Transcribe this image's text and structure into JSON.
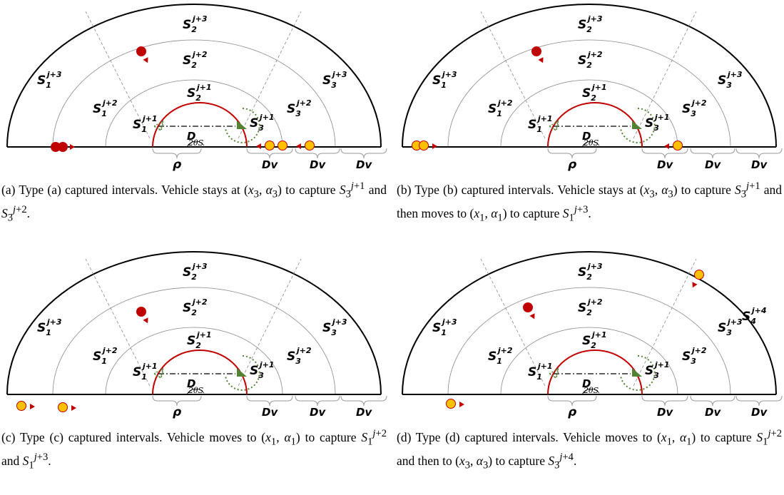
{
  "figure": {
    "panels": [
      {
        "id": "a",
        "labels": {
          "outer": [
            "S_1^{j+3}",
            "S_2^{j+3}",
            "S_3^{j+3}"
          ],
          "middle": [
            "S_1^{j+2}",
            "S_2^{j+2}",
            "S_3^{j+2}"
          ],
          "inner": [
            "S_1^{j+1}",
            "S_2^{j+1}",
            "S_3^{j+1}"
          ],
          "extra": "",
          "rho": "ρ",
          "D": "D",
          "angle": "2θ_S",
          "dv": [
            "Dv",
            "Dv",
            "Dv"
          ]
        },
        "caption_html": "(a) Type (a) captured intervals. Vehicle stays at (<i>x</i><sub>3</sub>, <i>α</i><sub>3</sub>) to capture <i>S</i><sub>3</sub><sup><i>j</i>+1</sup> and <i>S</i><sub>3</sub><sup><i>j</i>+2</sup>."
      },
      {
        "id": "b",
        "labels": {
          "outer": [
            "S_1^{j+3}",
            "S_2^{j+3}",
            "S_3^{j+3}"
          ],
          "middle": [
            "S_1^{j+2}",
            "S_2^{j+2}",
            "S_3^{j+2}"
          ],
          "inner": [
            "S_1^{j+1}",
            "S_2^{j+1}",
            "S_3^{j+1}"
          ],
          "extra": "",
          "rho": "ρ",
          "D": "D",
          "angle": "2θ_S",
          "dv": [
            "Dv",
            "Dv",
            "Dv"
          ]
        },
        "caption_html": "(b) Type (b) captured intervals. Vehicle stays at (<i>x</i><sub>3</sub>, <i>α</i><sub>3</sub>) to capture <i>S</i><sub>3</sub><sup><i>j</i>+1</sup> and then moves to (<i>x</i><sub>1</sub>, <i>α</i><sub>1</sub>) to capture <i>S</i><sub>1</sub><sup><i>j</i>+3</sup>."
      },
      {
        "id": "c",
        "labels": {
          "outer": [
            "S_1^{j+3}",
            "S_2^{j+3}",
            "S_3^{j+3}"
          ],
          "middle": [
            "S_1^{j+2}",
            "S_2^{j+2}",
            "S_3^{j+2}"
          ],
          "inner": [
            "S_1^{j+1}",
            "S_2^{j+1}",
            "S_3^{j+1}"
          ],
          "extra": "",
          "rho": "ρ",
          "D": "D",
          "angle": "2θ_S",
          "dv": [
            "Dv",
            "Dv",
            "Dv"
          ]
        },
        "caption_html": "(c) Type (c) captured intervals. Vehicle moves to (<i>x</i><sub>1</sub>, <i>α</i><sub>1</sub>) to capture <i>S</i><sub>1</sub><sup><i>j</i>+2</sup> and <i>S</i><sub>1</sub><sup><i>j</i>+3</sup>."
      },
      {
        "id": "d",
        "labels": {
          "outer": [
            "S_1^{j+3}",
            "S_2^{j+3}",
            "S_3^{j+3}"
          ],
          "middle": [
            "S_1^{j+2}",
            "S_2^{j+2}",
            "S_3^{j+2}"
          ],
          "inner": [
            "S_1^{j+1}",
            "S_2^{j+1}",
            "S_3^{j+1}"
          ],
          "extra": "S_4^{j+4}",
          "rho": "ρ",
          "D": "D",
          "angle": "2θ_S",
          "dv": [
            "Dv",
            "Dv",
            "Dv"
          ]
        },
        "caption_html": "(d) Type (d) captured intervals. Vehicle moves to (<i>x</i><sub>1</sub>, <i>α</i><sub>1</sub>) to capture <i>S</i><sub>1</sub><sup><i>j</i>+2</sup> and then to (<i>x</i><sub>3</sub>, <i>α</i><sub>3</sub>) to capture <i>S</i><sub>3</sub><sup><i>j</i>+4</sup>."
      }
    ],
    "colors": {
      "sensing_arc": "#c00000",
      "vehicle": "#548235",
      "target_red": "#c00000",
      "target_yellow": "#ffc000",
      "grid": "#888888"
    }
  }
}
